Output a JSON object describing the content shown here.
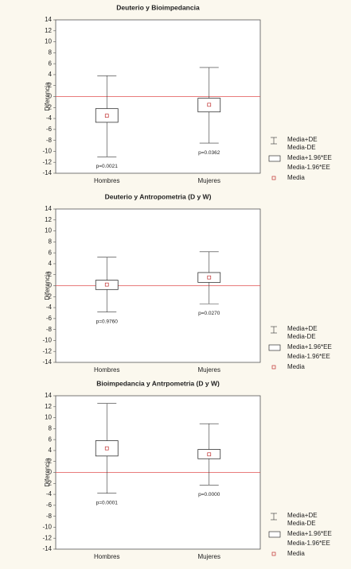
{
  "chart_data": [
    {
      "type": "box",
      "title": "Deuterio y Bioimpedancia",
      "ylabel": "Diferencia",
      "categories": [
        "Hombres",
        "Mujeres"
      ],
      "mean": [
        -3.5,
        -1.5
      ],
      "se_low": [
        -4.7,
        -2.8
      ],
      "se_high": [
        -2.2,
        -0.3
      ],
      "sd_low": [
        -11,
        -8.5
      ],
      "sd_high": [
        3.8,
        5.3
      ],
      "annotations": [
        "p=0.0021",
        "p=0.0362"
      ],
      "ylim": [
        -14,
        14
      ],
      "yticks": [
        14,
        12,
        10,
        8,
        6,
        4,
        2,
        0,
        -2,
        -4,
        -6,
        -8,
        -10,
        -12,
        -14
      ],
      "refline": 0,
      "refline_color": "#e05050",
      "color": "#333333",
      "mean_color": "#c03030",
      "legend": [
        "Media+DE",
        "Media-DE",
        "Media+1.96*EE",
        "Media-1.96*EE",
        "Media"
      ]
    },
    {
      "type": "box",
      "title": "Deuterio y Antropometria (D y W)",
      "ylabel": "Diferencia",
      "categories": [
        "Hombres",
        "Mujeres"
      ],
      "mean": [
        0.2,
        1.5
      ],
      "se_low": [
        -0.7,
        0.6
      ],
      "se_high": [
        1.0,
        2.4
      ],
      "sd_low": [
        -4.8,
        -3.3
      ],
      "sd_high": [
        5.2,
        6.2
      ],
      "annotations": [
        "p=0.9760",
        "p=0.0270"
      ],
      "ylim": [
        -14,
        14
      ],
      "yticks": [
        14,
        12,
        10,
        8,
        6,
        4,
        2,
        0,
        -2,
        -4,
        -6,
        -8,
        -10,
        -12,
        -14
      ],
      "refline": 0,
      "refline_color": "#e05050",
      "color": "#333333",
      "mean_color": "#c03030",
      "legend": [
        "Media+DE",
        "Media-DE",
        "Media+1.96*EE",
        "Media-1.96*EE",
        "Media"
      ]
    },
    {
      "type": "box",
      "title": "Bioimpedancia y Antrpometria (D y W)",
      "ylabel": "Diferencia",
      "categories": [
        "Hombres",
        "Mujeres"
      ],
      "mean": [
        4.4,
        3.3
      ],
      "se_low": [
        3.0,
        2.5
      ],
      "se_high": [
        5.8,
        4.2
      ],
      "sd_low": [
        -3.8,
        -2.3
      ],
      "sd_high": [
        12.6,
        8.9
      ],
      "annotations": [
        "p=0.0001",
        "p=0.0000"
      ],
      "ylim": [
        -14,
        14
      ],
      "yticks": [
        14,
        12,
        10,
        8,
        6,
        4,
        2,
        0,
        -2,
        -4,
        -6,
        -8,
        -10,
        -12,
        -14
      ],
      "refline": 0,
      "refline_color": "#e05050",
      "color": "#333333",
      "mean_color": "#c03030",
      "legend": [
        "Media+DE",
        "Media-DE",
        "Media+1.96*EE",
        "Media-1.96*EE",
        "Media"
      ]
    }
  ]
}
